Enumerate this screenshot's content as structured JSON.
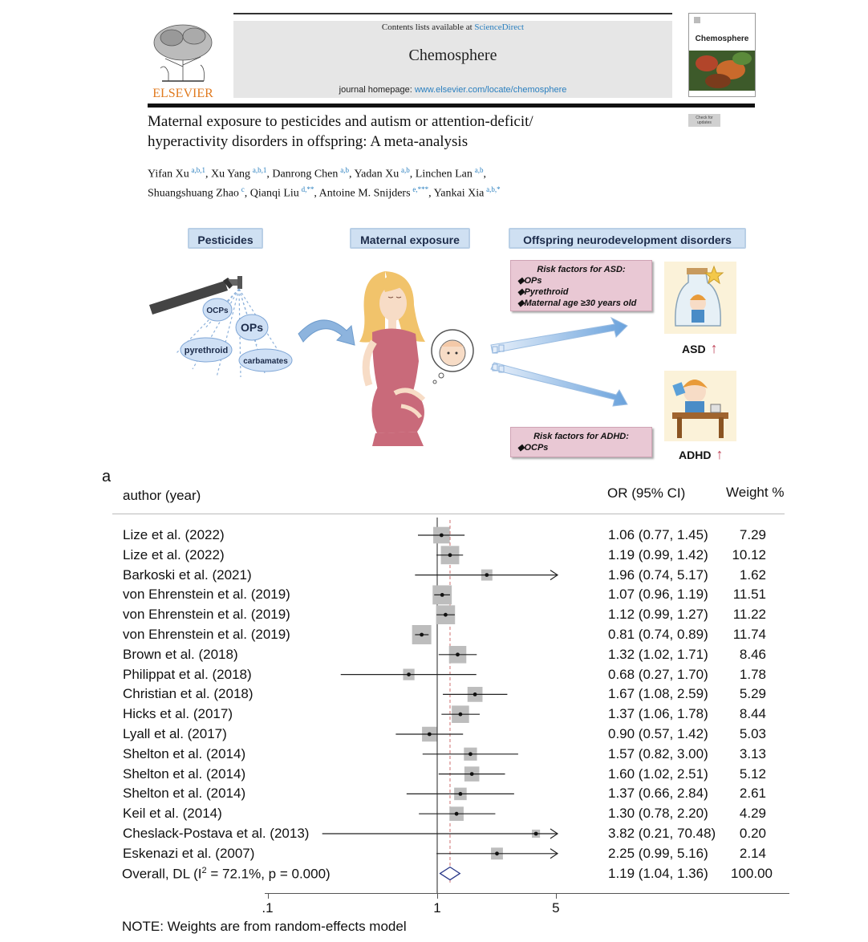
{
  "header": {
    "contents_prefix": "Contents lists available at",
    "contents_link": "ScienceDirect",
    "journal": "Chemosphere",
    "homepage_prefix": "journal homepage:",
    "homepage_url": "www.elsevier.com/locate/chemosphere",
    "publisher": "ELSEVIER",
    "cover_title": "Chemosphere",
    "check_badge": "Check for updates"
  },
  "paper": {
    "title_line1": "Maternal exposure to pesticides and autism or attention-deficit/",
    "title_line2": "hyperactivity disorders in offspring: A meta-analysis",
    "authors_line1": [
      {
        "name": "Yifan Xu",
        "aff": "a,b,1",
        "sep": ", "
      },
      {
        "name": "Xu Yang",
        "aff": "a,b,1",
        "sep": ", "
      },
      {
        "name": "Danrong Chen",
        "aff": "a,b",
        "sep": ", "
      },
      {
        "name": "Yadan Xu",
        "aff": "a,b",
        "sep": ", "
      },
      {
        "name": "Linchen Lan",
        "aff": "a,b",
        "sep": ","
      }
    ],
    "authors_line2": [
      {
        "name": "Shuangshuang Zhao",
        "aff": "c",
        "sep": ", "
      },
      {
        "name": "Qianqi Liu",
        "aff": "d,**",
        "sep": ", "
      },
      {
        "name": "Antoine M. Snijders",
        "aff": "e,***",
        "sep": ", "
      },
      {
        "name": "Yankai Xia",
        "aff": "a,b,*",
        "sep": ""
      }
    ]
  },
  "graphical_abstract": {
    "label_pesticides": "Pesticides",
    "label_exposure": "Maternal exposure",
    "label_offspring": "Offspring neurodevelopment disorders",
    "bubbles": [
      "OCPs",
      "OPs",
      "pyrethroid",
      "carbamates"
    ],
    "asd_box_title": "Risk factors for ASD:",
    "asd_box_items": [
      "OPs",
      "Pyrethroid",
      "Maternal age ≥30 years old"
    ],
    "adhd_box_title": "Risk factors for ADHD:",
    "adhd_box_items": [
      "OCPs"
    ],
    "outcome_asd": "ASD",
    "outcome_adhd": "ADHD",
    "up_arrow": "↑",
    "colors": {
      "label_bg": "#cfe0f2",
      "risk_bg": "#e9c8d4",
      "bubble": "#cfe0f5",
      "arrow": "#7fb0e0",
      "up": "#c0455a"
    }
  },
  "forest": {
    "panel_letter": "a",
    "col_author": "author (year)",
    "col_or": "OR (95% CI)",
    "col_weight": "Weight",
    "col_weight_unit": "%",
    "note": "NOTE: Weights are from random-effects model",
    "overall_prefix": "Overall, DL (I",
    "overall_sup": "2",
    "overall_suffix": " = 72.1%, p = 0.000)",
    "overall_ci": "1.19 (1.04, 1.36)",
    "overall_weight": "100.00",
    "overall": {
      "or": 1.19,
      "lo": 1.04,
      "hi": 1.36
    },
    "axis_ticks": [
      {
        "value": 0.1,
        "label": ".1"
      },
      {
        "value": 1,
        "label": "1"
      },
      {
        "value": 5,
        "label": "5"
      }
    ]
  },
  "chart_data": {
    "type": "scatter",
    "xscale": "log",
    "xlim": [
      0.1,
      5
    ],
    "reference_line": 1,
    "pooled_line": 1.19,
    "rows": [
      {
        "author": "Lize et al. (2022)",
        "or": 1.06,
        "lo": 0.77,
        "hi": 1.45,
        "ci": "1.06 (0.77, 1.45)",
        "weight": 7.29,
        "weight_label": "7.29"
      },
      {
        "author": "Lize et al. (2022)",
        "or": 1.19,
        "lo": 0.99,
        "hi": 1.42,
        "ci": "1.19 (0.99, 1.42)",
        "weight": 10.12,
        "weight_label": "10.12"
      },
      {
        "author": "Barkoski et al. (2021)",
        "or": 1.96,
        "lo": 0.74,
        "hi": 5.17,
        "ci": "1.96 (0.74, 5.17)",
        "weight": 1.62,
        "weight_label": "1.62"
      },
      {
        "author": "von Ehrenstein et al. (2019)",
        "or": 1.07,
        "lo": 0.96,
        "hi": 1.19,
        "ci": "1.07 (0.96, 1.19)",
        "weight": 11.51,
        "weight_label": "11.51"
      },
      {
        "author": "von Ehrenstein et al. (2019)",
        "or": 1.12,
        "lo": 0.99,
        "hi": 1.27,
        "ci": "1.12 (0.99, 1.27)",
        "weight": 11.22,
        "weight_label": "11.22"
      },
      {
        "author": "von Ehrenstein et al. (2019)",
        "or": 0.81,
        "lo": 0.74,
        "hi": 0.89,
        "ci": "0.81 (0.74, 0.89)",
        "weight": 11.74,
        "weight_label": "11.74"
      },
      {
        "author": "Brown et al. (2018)",
        "or": 1.32,
        "lo": 1.02,
        "hi": 1.71,
        "ci": "1.32 (1.02, 1.71)",
        "weight": 8.46,
        "weight_label": "8.46"
      },
      {
        "author": "Philippat et al. (2018)",
        "or": 0.68,
        "lo": 0.27,
        "hi": 1.7,
        "ci": "0.68 (0.27, 1.70)",
        "weight": 1.78,
        "weight_label": "1.78"
      },
      {
        "author": "Christian et al. (2018)",
        "or": 1.67,
        "lo": 1.08,
        "hi": 2.59,
        "ci": "1.67 (1.08, 2.59)",
        "weight": 5.29,
        "weight_label": "5.29"
      },
      {
        "author": "Hicks et al. (2017)",
        "or": 1.37,
        "lo": 1.06,
        "hi": 1.78,
        "ci": "1.37 (1.06, 1.78)",
        "weight": 8.44,
        "weight_label": "8.44"
      },
      {
        "author": "Lyall et al. (2017)",
        "or": 0.9,
        "lo": 0.57,
        "hi": 1.42,
        "ci": "0.90 (0.57, 1.42)",
        "weight": 5.03,
        "weight_label": "5.03"
      },
      {
        "author": "Shelton et al. (2014)",
        "or": 1.57,
        "lo": 0.82,
        "hi": 3.0,
        "ci": "1.57 (0.82, 3.00)",
        "weight": 3.13,
        "weight_label": "3.13"
      },
      {
        "author": "Shelton et al. (2014)",
        "or": 1.6,
        "lo": 1.02,
        "hi": 2.51,
        "ci": "1.60 (1.02, 2.51)",
        "weight": 5.12,
        "weight_label": "5.12"
      },
      {
        "author": "Shelton et al. (2014)",
        "or": 1.37,
        "lo": 0.66,
        "hi": 2.84,
        "ci": "1.37 (0.66, 2.84)",
        "weight": 2.61,
        "weight_label": "2.61"
      },
      {
        "author": "Keil et al. (2014)",
        "or": 1.3,
        "lo": 0.78,
        "hi": 2.2,
        "ci": "1.30 (0.78, 2.20)",
        "weight": 4.29,
        "weight_label": "4.29"
      },
      {
        "author": "Cheslack-Postava et al. (2013)",
        "or": 3.82,
        "lo": 0.21,
        "hi": 70.48,
        "ci": "3.82 (0.21, 70.48)",
        "weight": 0.2,
        "weight_label": "0.20"
      },
      {
        "author": "Eskenazi et al. (2007)",
        "or": 2.25,
        "lo": 0.99,
        "hi": 5.16,
        "ci": "2.25 (0.99, 5.16)",
        "weight": 2.14,
        "weight_label": "2.14"
      }
    ]
  }
}
